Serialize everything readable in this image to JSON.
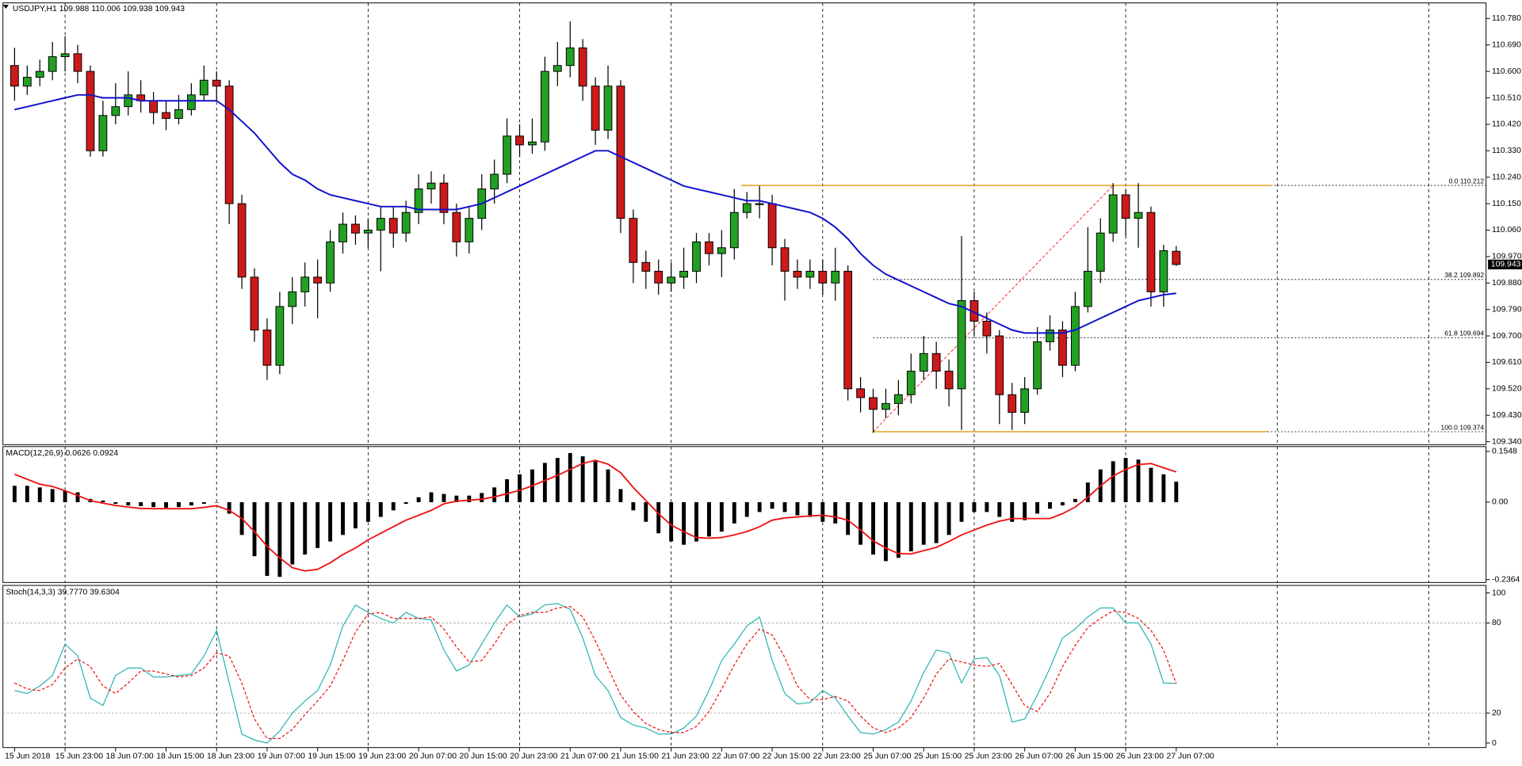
{
  "chart_data": [
    {
      "type": "candlestick",
      "title": "USDJPY,H1  109.988 110.006 109.938 109.943",
      "up_color": "#22a022",
      "down_color": "#cc1a1a",
      "grid": true,
      "categories": [
        "15 Jun 2018",
        null,
        null,
        null,
        "15 Jun 23:00",
        null,
        null,
        null,
        "18 Jun 07:00",
        null,
        null,
        null,
        "18 Jun 15:00",
        null,
        null,
        null,
        "18 Jun 23:00",
        null,
        null,
        null,
        "19 Jun 07:00",
        null,
        null,
        null,
        "19 Jun 15:00",
        null,
        null,
        null,
        "19 Jun 23:00",
        null,
        null,
        null,
        "20 Jun 07:00",
        null,
        null,
        null,
        "20 Jun 15:00",
        null,
        null,
        null,
        "20 Jun 23:00",
        null,
        null,
        null,
        "21 Jun 07:00",
        null,
        null,
        null,
        "21 Jun 15:00",
        null,
        null,
        null,
        "21 Jun 23:00",
        null,
        null,
        null,
        "22 Jun 07:00",
        null,
        null,
        null,
        "22 Jun 15:00",
        null,
        null,
        null,
        "22 Jun 23:00",
        null,
        null,
        null,
        "25 Jun 07:00",
        null,
        null,
        null,
        "25 Jun 15:00",
        null,
        null,
        null,
        "25 Jun 23:00",
        null,
        null,
        null,
        "26 Jun 07:00",
        null,
        null,
        null,
        "26 Jun 15:00",
        null,
        null,
        null,
        "26 Jun 23:00",
        null,
        null,
        null,
        "27 Jun 07:00"
      ],
      "open": [
        110.62,
        110.55,
        110.58,
        110.6,
        110.65,
        110.66,
        110.6,
        110.33,
        110.45,
        110.48,
        110.52,
        110.5,
        110.46,
        110.44,
        110.47,
        110.52,
        110.57,
        110.55,
        110.15,
        109.9,
        109.72,
        109.6,
        109.8,
        109.85,
        109.9,
        109.88,
        110.02,
        110.08,
        110.05,
        110.06,
        110.1,
        110.05,
        110.12,
        110.2,
        110.22,
        110.12,
        110.02,
        110.1,
        110.2,
        110.25,
        110.38,
        110.35,
        110.36,
        110.6,
        110.62,
        110.68,
        110.55,
        110.4,
        110.55,
        110.1,
        109.95,
        109.92,
        109.88,
        109.9,
        109.92,
        110.02,
        109.98,
        110.0,
        110.12,
        110.15,
        110.15,
        110.0,
        109.92,
        109.9,
        109.92,
        109.88,
        109.92,
        109.52,
        109.49,
        109.45,
        109.47,
        109.5,
        109.58,
        109.64,
        109.58,
        109.52,
        109.82,
        109.75,
        109.7,
        109.5,
        109.44,
        109.52,
        109.68,
        109.72,
        109.6,
        109.8,
        109.92,
        110.05,
        110.18,
        110.1,
        110.12,
        109.85,
        109.988
      ],
      "high": [
        110.68,
        110.62,
        110.64,
        110.7,
        110.72,
        110.69,
        110.62,
        110.5,
        110.56,
        110.6,
        110.57,
        110.53,
        110.5,
        110.52,
        110.56,
        110.62,
        110.6,
        110.57,
        110.18,
        109.93,
        109.76,
        109.85,
        109.9,
        109.95,
        109.96,
        110.06,
        110.12,
        110.11,
        110.1,
        110.14,
        110.14,
        110.16,
        110.25,
        110.26,
        110.25,
        110.15,
        110.14,
        110.25,
        110.3,
        110.44,
        110.42,
        110.44,
        110.65,
        110.7,
        110.77,
        110.71,
        110.58,
        110.62,
        110.57,
        110.13,
        109.99,
        109.96,
        109.95,
        110.0,
        110.05,
        110.05,
        110.06,
        110.2,
        110.19,
        110.21,
        110.18,
        110.03,
        109.96,
        109.96,
        109.96,
        110.0,
        109.94,
        109.56,
        109.52,
        109.52,
        109.55,
        109.64,
        109.7,
        109.68,
        109.62,
        110.04,
        109.85,
        109.78,
        109.72,
        109.54,
        109.56,
        109.73,
        109.77,
        109.75,
        109.85,
        110.07,
        110.1,
        110.22,
        110.2,
        110.22,
        110.14,
        110.01,
        110.006
      ],
      "low": [
        110.5,
        110.52,
        110.55,
        110.57,
        110.6,
        110.56,
        110.31,
        110.31,
        110.42,
        110.45,
        110.46,
        110.42,
        110.4,
        110.42,
        110.45,
        110.5,
        110.5,
        110.08,
        109.86,
        109.68,
        109.55,
        109.57,
        109.74,
        109.8,
        109.76,
        109.85,
        109.98,
        110.01,
        110.0,
        109.92,
        110.0,
        110.02,
        110.08,
        110.15,
        110.08,
        109.97,
        109.98,
        110.06,
        110.15,
        110.22,
        110.31,
        110.32,
        110.33,
        110.55,
        110.58,
        110.5,
        110.35,
        110.37,
        110.05,
        109.88,
        109.86,
        109.84,
        109.85,
        109.86,
        109.88,
        109.94,
        109.9,
        109.96,
        110.1,
        110.1,
        109.94,
        109.82,
        109.86,
        109.86,
        109.84,
        109.82,
        109.48,
        109.44,
        109.37,
        109.42,
        109.43,
        109.47,
        109.55,
        109.52,
        109.46,
        109.38,
        109.7,
        109.64,
        109.4,
        109.38,
        109.4,
        109.5,
        109.65,
        109.56,
        109.58,
        109.78,
        109.88,
        110.02,
        110.04,
        110.0,
        109.8,
        109.8,
        109.938
      ],
      "close": [
        110.55,
        110.58,
        110.6,
        110.65,
        110.66,
        110.6,
        110.33,
        110.45,
        110.48,
        110.52,
        110.5,
        110.46,
        110.44,
        110.47,
        110.52,
        110.57,
        110.55,
        110.15,
        109.9,
        109.72,
        109.6,
        109.8,
        109.85,
        109.9,
        109.88,
        110.02,
        110.08,
        110.05,
        110.06,
        110.1,
        110.05,
        110.12,
        110.2,
        110.22,
        110.12,
        110.02,
        110.1,
        110.2,
        110.25,
        110.38,
        110.35,
        110.36,
        110.6,
        110.62,
        110.68,
        110.55,
        110.4,
        110.55,
        110.1,
        109.95,
        109.92,
        109.88,
        109.9,
        109.92,
        110.02,
        109.98,
        110.0,
        110.12,
        110.15,
        110.15,
        110.0,
        109.92,
        109.9,
        109.92,
        109.88,
        109.92,
        109.52,
        109.49,
        109.45,
        109.47,
        109.5,
        109.58,
        109.64,
        109.58,
        109.52,
        109.82,
        109.75,
        109.7,
        109.5,
        109.44,
        109.52,
        109.68,
        109.72,
        109.6,
        109.8,
        109.92,
        110.05,
        110.18,
        110.1,
        110.12,
        109.85,
        109.99,
        109.943
      ],
      "ma": {
        "color": "#1010cc",
        "values": [
          110.47,
          110.48,
          110.49,
          110.5,
          110.51,
          110.52,
          110.52,
          110.51,
          110.51,
          110.51,
          110.5,
          110.5,
          110.5,
          110.5,
          110.5,
          110.5,
          110.5,
          110.47,
          110.43,
          110.39,
          110.34,
          110.29,
          110.25,
          110.23,
          110.2,
          110.18,
          110.17,
          110.16,
          110.15,
          110.14,
          110.14,
          110.14,
          110.13,
          110.13,
          110.13,
          110.13,
          110.14,
          110.15,
          110.17,
          110.19,
          110.21,
          110.23,
          110.25,
          110.27,
          110.29,
          110.31,
          110.33,
          110.33,
          110.31,
          110.29,
          110.27,
          110.25,
          110.23,
          110.21,
          110.2,
          110.19,
          110.18,
          110.17,
          110.16,
          110.16,
          110.15,
          110.14,
          110.13,
          110.12,
          110.1,
          110.07,
          110.03,
          109.98,
          109.94,
          109.91,
          109.89,
          109.87,
          109.85,
          109.83,
          109.81,
          109.8,
          109.78,
          109.76,
          109.74,
          109.72,
          109.71,
          109.71,
          109.71,
          109.71,
          109.72,
          109.74,
          109.76,
          109.78,
          109.8,
          109.82,
          109.83,
          109.84,
          109.845
        ]
      },
      "ylim": [
        109.33,
        110.833
      ],
      "yticks": [
        {
          "value": 110.78,
          "label": "110.780"
        },
        {
          "value": 110.69,
          "label": "110.690"
        },
        {
          "value": 110.6,
          "label": "110.600"
        },
        {
          "value": 110.51,
          "label": "110.510"
        },
        {
          "value": 110.42,
          "label": "110.420"
        },
        {
          "value": 110.33,
          "label": "110.330"
        },
        {
          "value": 110.24,
          "label": "110.240"
        },
        {
          "value": 110.15,
          "label": "110.150"
        },
        {
          "value": 110.06,
          "label": "110.060"
        },
        {
          "value": 109.97,
          "label": "109.970"
        },
        {
          "value": 109.88,
          "label": "109.880"
        },
        {
          "value": 109.79,
          "label": "109.790"
        },
        {
          "value": 109.7,
          "label": "109.700"
        },
        {
          "value": 109.61,
          "label": "109.610"
        },
        {
          "value": 109.52,
          "label": "109.520"
        },
        {
          "value": 109.43,
          "label": "109.430"
        },
        {
          "value": 109.34,
          "label": "109.340"
        }
      ],
      "last_price": {
        "value": 109.943,
        "label": "109.943"
      },
      "fibonacci": {
        "color": "#ff2020",
        "line_color": "#e0a020",
        "levels": [
          {
            "value": 110.212,
            "label": "0.0 110.212"
          },
          {
            "value": 109.892,
            "label": "38.2 109.892"
          },
          {
            "value": 109.694,
            "label": "61.8 109.694"
          },
          {
            "value": 109.374,
            "label": "100.0 109.374"
          }
        ]
      }
    },
    {
      "type": "bar",
      "title": "MACD(12,26,9) 0.0626 0.0924",
      "color": "#000000",
      "values": [
        0.05,
        0.05,
        0.045,
        0.04,
        0.035,
        0.03,
        0.01,
        0.005,
        -0.005,
        -0.01,
        -0.012,
        -0.015,
        -0.017,
        -0.015,
        -0.01,
        -0.005,
        0.0,
        -0.035,
        -0.1,
        -0.165,
        -0.225,
        -0.228,
        -0.19,
        -0.16,
        -0.14,
        -0.12,
        -0.1,
        -0.08,
        -0.06,
        -0.045,
        -0.025,
        -0.005,
        0.015,
        0.03,
        0.025,
        0.02,
        0.02,
        0.028,
        0.045,
        0.07,
        0.085,
        0.1,
        0.12,
        0.135,
        0.15,
        0.14,
        0.125,
        0.1,
        0.04,
        -0.025,
        -0.06,
        -0.095,
        -0.12,
        -0.13,
        -0.12,
        -0.105,
        -0.09,
        -0.065,
        -0.045,
        -0.03,
        -0.02,
        -0.03,
        -0.04,
        -0.045,
        -0.06,
        -0.065,
        -0.1,
        -0.13,
        -0.16,
        -0.18,
        -0.17,
        -0.15,
        -0.13,
        -0.125,
        -0.1,
        -0.06,
        -0.03,
        -0.03,
        -0.045,
        -0.06,
        -0.055,
        -0.035,
        -0.02,
        -0.01,
        0.01,
        0.06,
        0.1,
        0.125,
        0.135,
        0.13,
        0.105,
        0.085,
        0.0626
      ],
      "signal": {
        "color": "#ee1111",
        "values": [
          0.085,
          0.07,
          0.055,
          0.048,
          0.035,
          0.02,
          0.005,
          -0.003,
          -0.01,
          -0.015,
          -0.019,
          -0.02,
          -0.02,
          -0.02,
          -0.02,
          -0.016,
          -0.011,
          -0.025,
          -0.05,
          -0.09,
          -0.135,
          -0.17,
          -0.2,
          -0.21,
          -0.205,
          -0.185,
          -0.16,
          -0.14,
          -0.115,
          -0.095,
          -0.075,
          -0.055,
          -0.04,
          -0.025,
          -0.005,
          0.003,
          0.006,
          0.009,
          0.016,
          0.026,
          0.036,
          0.05,
          0.066,
          0.082,
          0.1,
          0.118,
          0.128,
          0.116,
          0.09,
          0.045,
          0.005,
          -0.035,
          -0.07,
          -0.09,
          -0.108,
          -0.11,
          -0.108,
          -0.1,
          -0.09,
          -0.075,
          -0.055,
          -0.048,
          -0.045,
          -0.042,
          -0.04,
          -0.045,
          -0.055,
          -0.085,
          -0.118,
          -0.14,
          -0.157,
          -0.158,
          -0.148,
          -0.138,
          -0.12,
          -0.1,
          -0.085,
          -0.07,
          -0.058,
          -0.05,
          -0.05,
          -0.05,
          -0.05,
          -0.035,
          -0.015,
          0.015,
          0.05,
          0.08,
          0.1,
          0.115,
          0.118,
          0.105,
          0.0924
        ]
      },
      "ylim": [
        -0.2453,
        0.1697
      ],
      "yticks": [
        0.1548,
        {
          "value": 0,
          "label": "0.00"
        },
        -0.2364
      ]
    },
    {
      "type": "line",
      "title": "Stoch(14,3,3) 39.7770 39.6304",
      "main": {
        "color": "#2ab5b0",
        "values": [
          35,
          33,
          38,
          45,
          66,
          58,
          30,
          25,
          45,
          50,
          50,
          44,
          44,
          45,
          46,
          58,
          75,
          40,
          6,
          2,
          0,
          8,
          20,
          28,
          35,
          52,
          78,
          92,
          87,
          83,
          80,
          87,
          83,
          82,
          62,
          48,
          52,
          66,
          80,
          92,
          84,
          86,
          92,
          93,
          89,
          70,
          45,
          35,
          17,
          12,
          10,
          6,
          6,
          10,
          18,
          35,
          55,
          66,
          78,
          84,
          55,
          33,
          26,
          27,
          35,
          30,
          18,
          7,
          6,
          9,
          14,
          28,
          47,
          62,
          60,
          40,
          56,
          57,
          45,
          14,
          16,
          32,
          50,
          70,
          76,
          84,
          90,
          90,
          80,
          80,
          66,
          40,
          39.777
        ]
      },
      "signal": {
        "color": "#ee1111",
        "dash": true,
        "values": [
          40,
          36,
          35,
          39,
          50,
          56,
          51,
          38,
          33,
          40,
          48,
          48,
          46,
          44,
          45,
          50,
          60,
          58,
          40,
          16,
          3,
          3,
          9,
          19,
          28,
          38,
          55,
          74,
          86,
          87,
          83,
          83,
          83,
          84,
          76,
          64,
          54,
          55,
          66,
          79,
          85,
          87,
          87,
          90,
          91,
          84,
          68,
          50,
          32,
          21,
          13,
          9,
          7,
          7,
          11,
          21,
          36,
          52,
          66,
          76,
          72,
          57,
          38,
          29,
          29,
          31,
          28,
          18,
          10,
          7,
          10,
          17,
          30,
          46,
          56,
          54,
          52,
          51,
          53,
          39,
          25,
          21,
          33,
          51,
          65,
          77,
          83,
          88,
          87,
          83,
          75,
          62,
          39.6304
        ]
      },
      "levels": [
        80,
        20
      ],
      "ylim": [
        -3,
        105
      ],
      "yticks": [
        100,
        80,
        20,
        0
      ]
    }
  ]
}
